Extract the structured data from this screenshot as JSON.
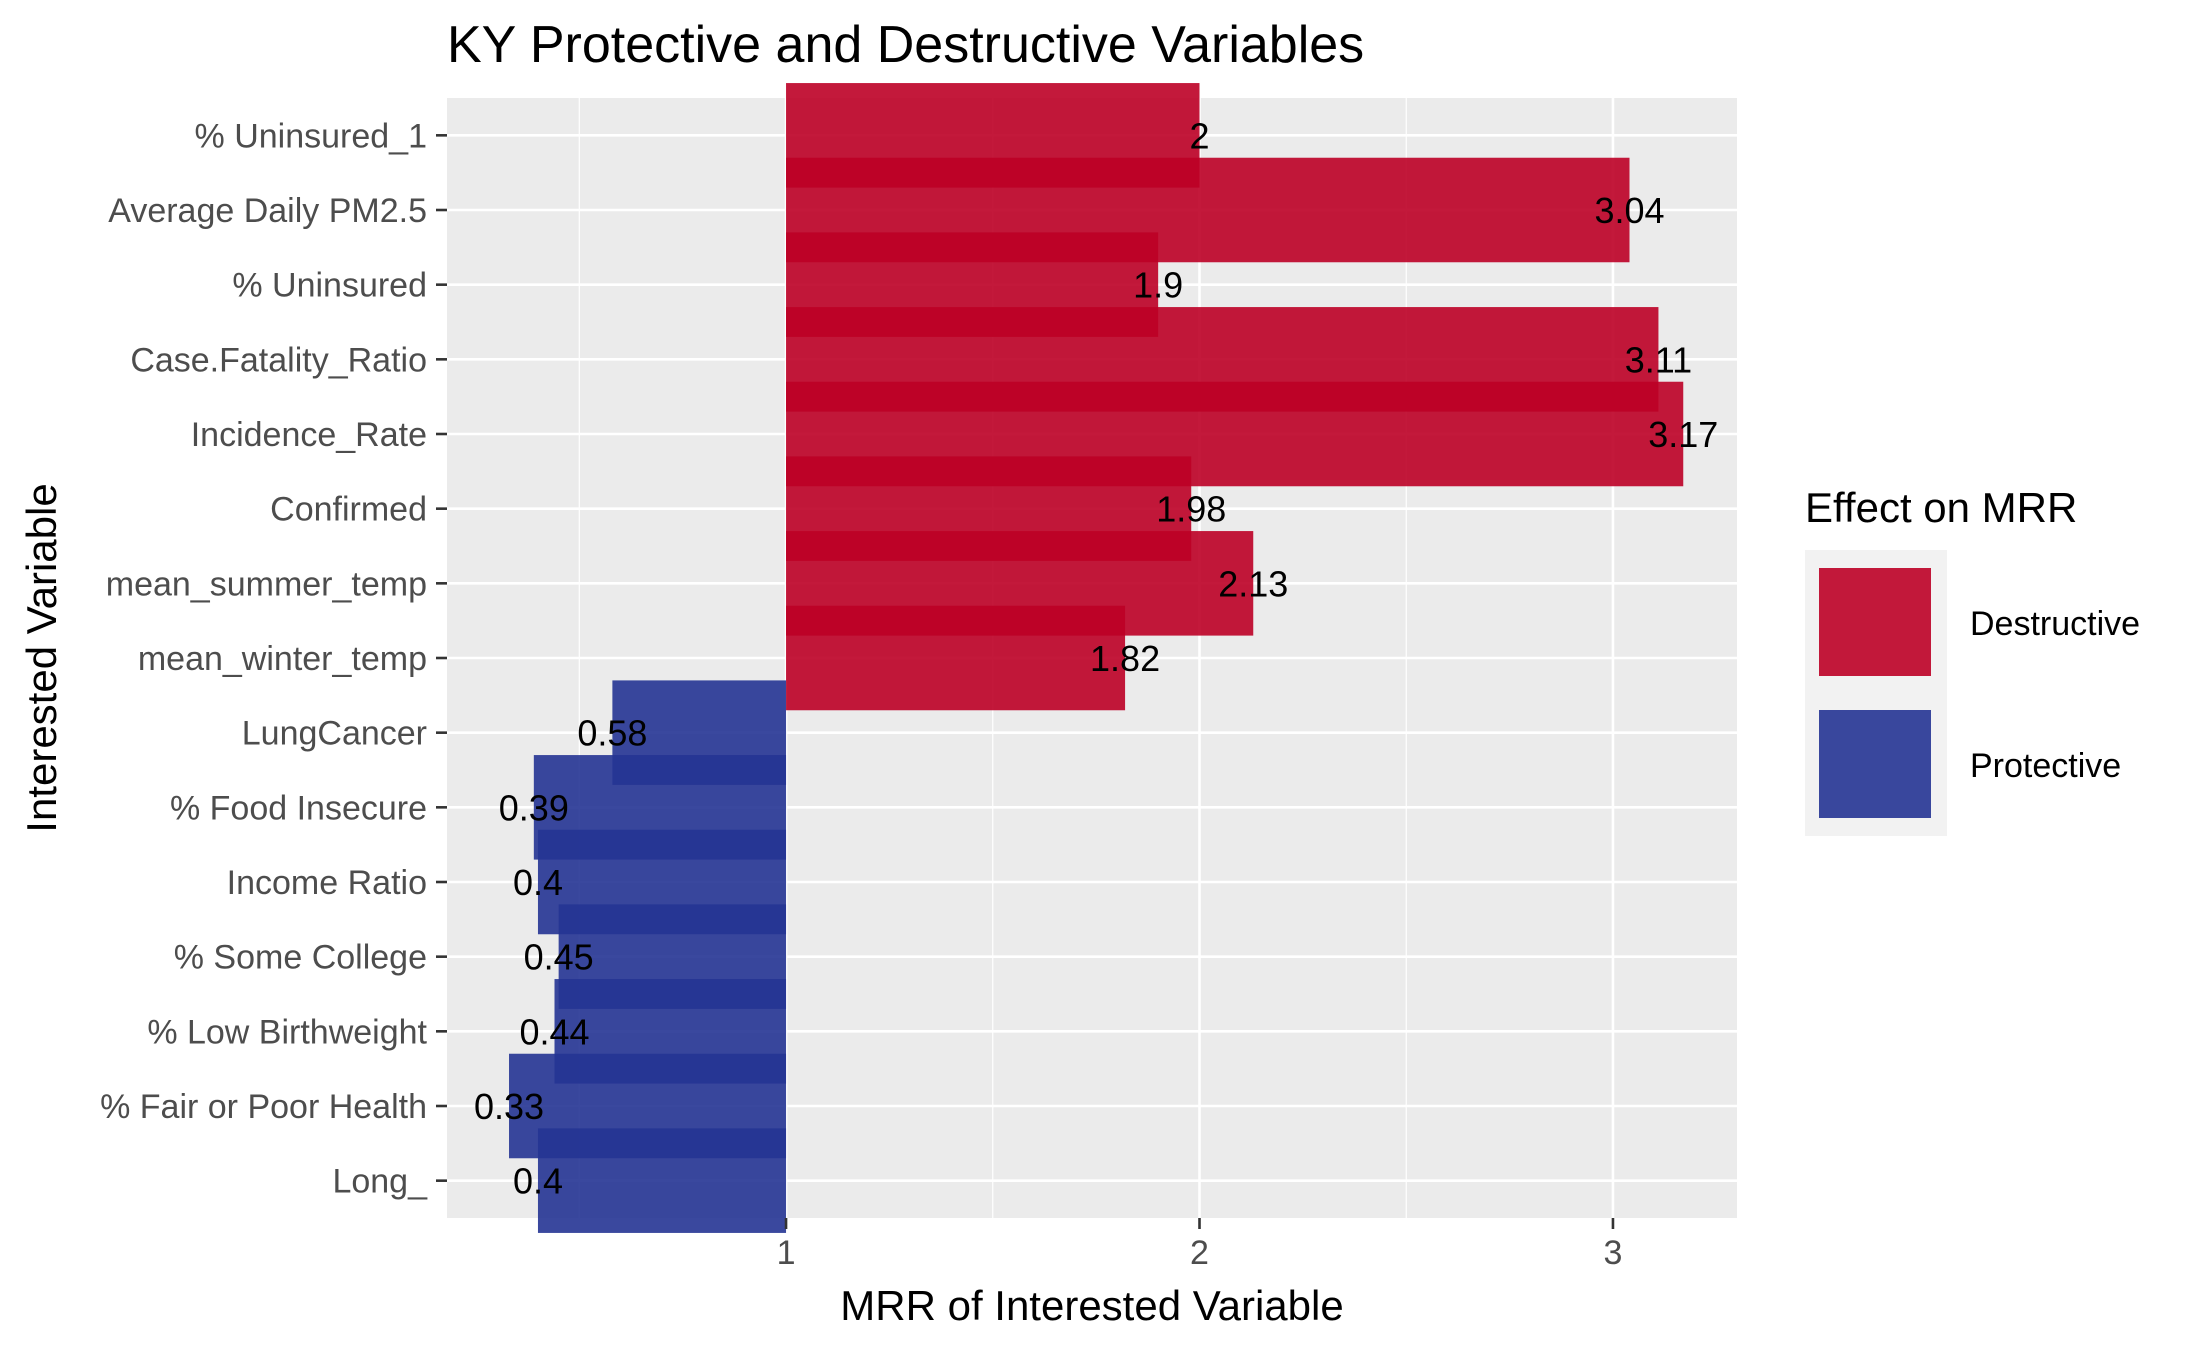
{
  "chart_data": {
    "type": "bar",
    "orientation": "horizontal",
    "title": "KY Protective and Destructive Variables",
    "xlabel": "MRR of Interested Variable",
    "ylabel": "Interested Variable",
    "baseline": 1,
    "xlim": [
      0.18,
      3.3
    ],
    "xticks": [
      1,
      2,
      3
    ],
    "grid": true,
    "legend": {
      "title": "Effect on MRR",
      "position": "right",
      "entries": [
        {
          "label": "Destructive",
          "color": "#BD0026"
        },
        {
          "label": "Protective",
          "color": "#253494"
        }
      ]
    },
    "categories": [
      "% Uninsured_1",
      "Average Daily PM2.5",
      "% Uninsured",
      "Case.Fatality_Ratio",
      "Incidence_Rate",
      "Confirmed",
      "mean_summer_temp",
      "mean_winter_temp",
      "LungCancer",
      "% Food Insecure",
      "Income Ratio",
      "% Some College",
      "% Low Birthweight",
      "% Fair or Poor Health",
      "Long_"
    ],
    "values": [
      2,
      3.04,
      1.9,
      3.11,
      3.17,
      1.98,
      2.13,
      1.82,
      0.58,
      0.39,
      0.4,
      0.45,
      0.44,
      0.33,
      0.4
    ],
    "value_labels": [
      "2",
      "3.04",
      "1.9",
      "3.11",
      "3.17",
      "1.98",
      "2.13",
      "1.82",
      "0.58",
      "0.39",
      "0.4",
      "0.45",
      "0.44",
      "0.33",
      "0.4"
    ],
    "effects": [
      "Destructive",
      "Destructive",
      "Destructive",
      "Destructive",
      "Destructive",
      "Destructive",
      "Destructive",
      "Destructive",
      "Protective",
      "Protective",
      "Protective",
      "Protective",
      "Protective",
      "Protective",
      "Protective"
    ]
  }
}
